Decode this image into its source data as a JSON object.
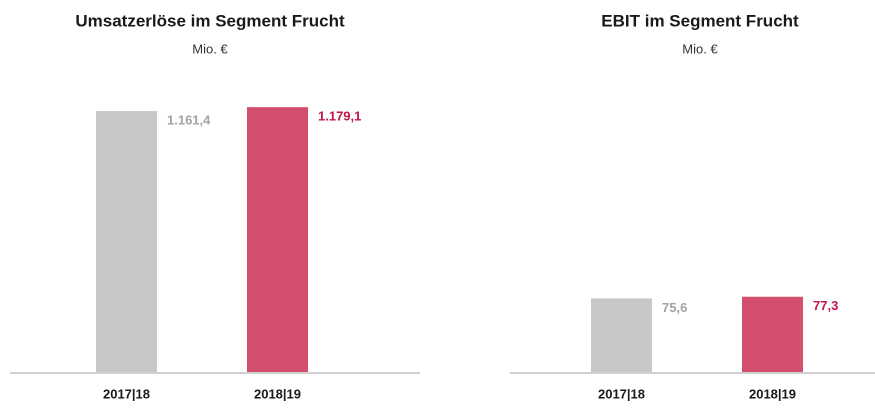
{
  "chart_data": [
    {
      "type": "bar",
      "title": "Umsatzerlöse im Segment Frucht",
      "subtitle": "Mio. €",
      "categories": [
        "2017|18",
        "2018|19"
      ],
      "values": [
        1161.4,
        1179.1
      ],
      "value_labels": [
        "1.161,4",
        "1.179,1"
      ],
      "colors": [
        "#c6c7c6",
        "#d44f6e"
      ],
      "label_colors": [
        "#a3a3a3",
        "#c0174a"
      ],
      "ylim": [
        0,
        1300
      ]
    },
    {
      "type": "bar",
      "title": "EBIT im Segment Frucht",
      "subtitle": "Mio. €",
      "categories": [
        "2017|18",
        "2018|19"
      ],
      "values": [
        75.6,
        77.3
      ],
      "value_labels": [
        "75,6",
        "77,3"
      ],
      "colors": [
        "#c6c7c6",
        "#d44f6e"
      ],
      "label_colors": [
        "#a3a3a3",
        "#c0174a"
      ],
      "ylim": [
        0,
        300
      ]
    }
  ]
}
